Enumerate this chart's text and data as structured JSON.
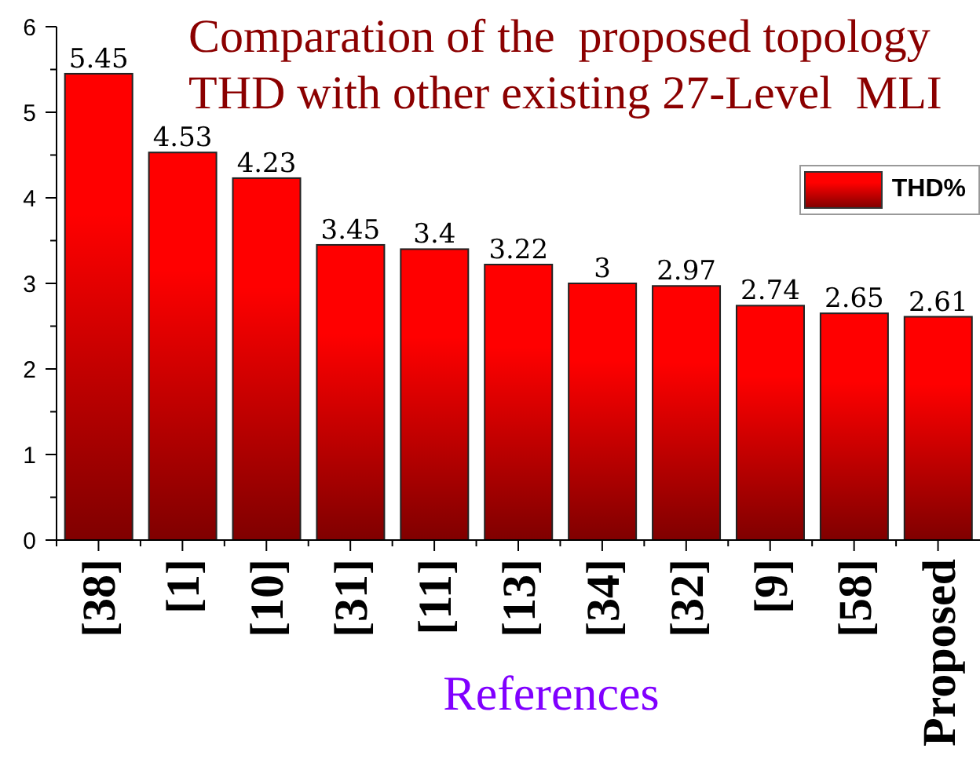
{
  "chart_data": {
    "type": "bar",
    "title": "Comparation of the  proposed topology\nTHD with other existing 27-Level  MLI",
    "xlabel": "References",
    "categories": [
      "[38]",
      "[1]",
      "[10]",
      "[31]",
      "[11]",
      "[13]",
      "[34]",
      "[32]",
      "[9]",
      "[58]",
      "Proposed"
    ],
    "series": [
      {
        "name": "THD%",
        "color": "#ff0000",
        "values": [
          5.45,
          4.53,
          4.23,
          3.45,
          3.4,
          3.22,
          3,
          2.97,
          2.74,
          2.65,
          2.61
        ]
      }
    ],
    "ylim": [
      0,
      6
    ],
    "yticks": [
      0,
      {
        "value": 0.5,
        "label": null
      },
      1,
      {
        "value": 1.5,
        "label": null
      },
      2,
      {
        "value": 2.5,
        "label": null
      },
      3,
      {
        "value": 3.5,
        "label": null
      },
      4,
      {
        "value": 4.5,
        "label": null
      },
      5,
      {
        "value": 5.5,
        "label": null
      },
      6
    ],
    "legend": "top right",
    "data_labels": true
  }
}
